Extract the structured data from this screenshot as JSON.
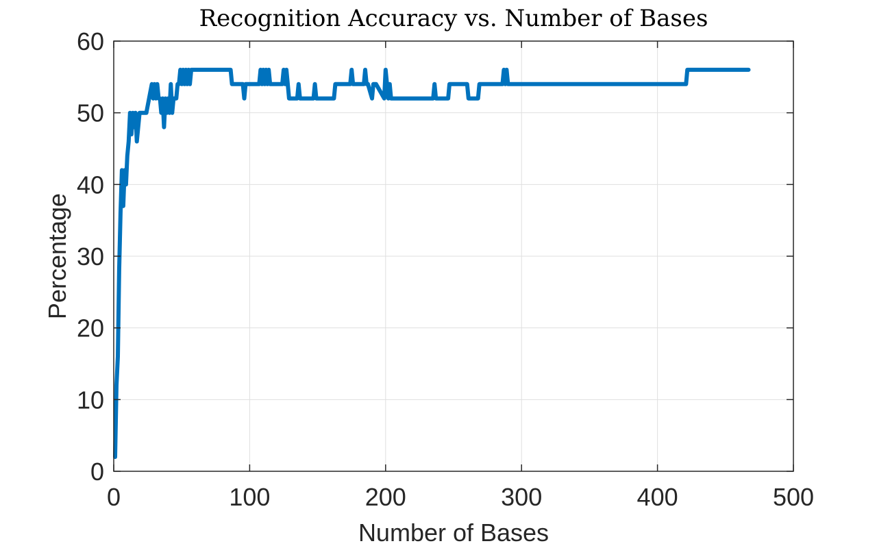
{
  "chart_data": {
    "type": "line",
    "title": "Recognition Accuracy vs. Number of Bases",
    "xlabel": "Number of Bases",
    "ylabel": "Percentage",
    "xlim": [
      0,
      500
    ],
    "ylim": [
      0,
      60
    ],
    "xticks": [
      "0",
      "100",
      "200",
      "300",
      "400",
      "500"
    ],
    "yticks": [
      "0",
      "10",
      "20",
      "30",
      "40",
      "50",
      "60"
    ],
    "grid": true,
    "legend": "none",
    "line_color": "#0072BD",
    "series": [
      {
        "x": [
          1,
          2,
          3,
          4,
          5,
          6,
          7,
          8,
          9,
          10,
          11,
          12,
          13,
          14,
          15,
          16,
          17,
          18,
          19,
          20,
          22,
          24,
          26,
          28,
          29,
          30,
          31,
          32,
          33,
          34,
          35,
          36,
          37,
          38,
          39,
          40,
          41,
          42,
          43,
          44,
          45,
          46,
          47,
          48,
          49,
          50,
          51,
          52,
          53,
          54,
          55,
          56,
          57,
          58,
          59,
          60,
          61,
          62,
          63,
          64,
          70,
          80,
          86,
          87,
          95,
          96,
          97,
          100,
          107,
          108,
          109,
          110,
          111,
          112,
          113,
          114,
          115,
          116,
          117,
          118,
          124,
          125,
          126,
          127,
          128,
          129,
          130,
          135,
          136,
          137,
          138,
          147,
          148,
          149,
          150,
          162,
          163,
          170,
          174,
          175,
          176,
          177,
          184,
          185,
          186,
          187,
          190,
          191,
          192,
          193,
          199,
          200,
          201,
          202,
          203,
          204,
          205,
          206,
          210,
          230,
          235,
          236,
          237,
          246,
          247,
          260,
          261,
          264,
          268,
          269,
          270,
          285,
          286,
          287,
          288,
          289,
          290,
          291,
          300,
          350,
          400,
          421,
          422,
          423,
          430,
          450,
          467
        ],
        "y": [
          2,
          12,
          16,
          28,
          36,
          42,
          37,
          42,
          40,
          44,
          46,
          50,
          47,
          50,
          48,
          50,
          46,
          48,
          50,
          50,
          50,
          50,
          52,
          54,
          52,
          54,
          52,
          54,
          52,
          52,
          50,
          52,
          48,
          52,
          50,
          52,
          50,
          54,
          50,
          52,
          52,
          52,
          54,
          54,
          56,
          54,
          56,
          54,
          56,
          54,
          56,
          54,
          56,
          56,
          56,
          56,
          56,
          56,
          56,
          56,
          56,
          56,
          56,
          54,
          54,
          52,
          54,
          54,
          54,
          56,
          54,
          56,
          54,
          56,
          54,
          56,
          54,
          54,
          54,
          54,
          54,
          56,
          54,
          56,
          54,
          52,
          52,
          52,
          54,
          52,
          52,
          52,
          54,
          52,
          52,
          52,
          54,
          54,
          54,
          56,
          54,
          54,
          54,
          56,
          54,
          54,
          52,
          54,
          54,
          54,
          52,
          56,
          54,
          52,
          54,
          52,
          52,
          52,
          52,
          52,
          52,
          54,
          52,
          52,
          54,
          54,
          52,
          52,
          52,
          54,
          54,
          54,
          54,
          56,
          54,
          56,
          54,
          54,
          54,
          54,
          54,
          54,
          56,
          56,
          56,
          56,
          56
        ]
      }
    ]
  }
}
